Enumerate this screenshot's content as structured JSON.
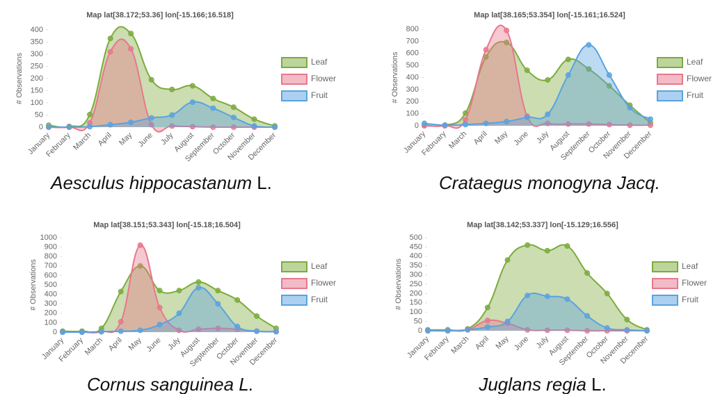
{
  "chart_data": [
    {
      "type": "area-line",
      "title": "Map lat[38.172;53.36] lon[-15.166;16.518]",
      "ylabel": "# Observations",
      "caption": [
        {
          "text": "Aesculus hippocastanum",
          "italic": true
        },
        {
          "text": "L.",
          "italic": false
        }
      ],
      "categories": [
        "January",
        "February",
        "March",
        "April",
        "May",
        "June",
        "July",
        "August",
        "September",
        "October",
        "November",
        "December"
      ],
      "ylim": [
        0,
        400
      ],
      "yticks": [
        0,
        50,
        100,
        150,
        200,
        250,
        300,
        350,
        400
      ],
      "series": [
        {
          "name": "Leaf",
          "color": "#7cab3c",
          "values": [
            8,
            3,
            52,
            365,
            385,
            195,
            155,
            170,
            118,
            82,
            33,
            5
          ]
        },
        {
          "name": "Flower",
          "color": "#e8778d",
          "values": [
            0,
            0,
            18,
            310,
            322,
            10,
            5,
            2,
            0,
            0,
            0,
            0
          ]
        },
        {
          "name": "Fruit",
          "color": "#5aa2e0",
          "values": [
            0,
            0,
            2,
            10,
            20,
            38,
            50,
            103,
            78,
            40,
            5,
            0
          ]
        }
      ]
    },
    {
      "type": "area-line",
      "title": "Map lat[38.165;53.354] lon[-15.161;16.524]",
      "ylabel": "# Observations",
      "caption": [
        {
          "text": "Crataegus monogyna Jacq.",
          "italic": true
        }
      ],
      "categories": [
        "January",
        "February",
        "March",
        "April",
        "May",
        "June",
        "July",
        "August",
        "September",
        "October",
        "November",
        "December"
      ],
      "ylim": [
        0,
        800
      ],
      "yticks": [
        0,
        100,
        200,
        300,
        400,
        500,
        600,
        700,
        800
      ],
      "series": [
        {
          "name": "Leaf",
          "color": "#7cab3c",
          "values": [
            5,
            5,
            105,
            570,
            690,
            460,
            380,
            550,
            470,
            330,
            170,
            25
          ]
        },
        {
          "name": "Flower",
          "color": "#e8778d",
          "values": [
            0,
            0,
            50,
            630,
            790,
            80,
            20,
            15,
            15,
            10,
            5,
            5
          ]
        },
        {
          "name": "Fruit",
          "color": "#5aa2e0",
          "values": [
            20,
            5,
            10,
            20,
            35,
            70,
            95,
            420,
            670,
            420,
            150,
            55
          ]
        }
      ]
    },
    {
      "type": "area-line",
      "title": "Map lat[38.151;53.343] lon[-15.18;16.504]",
      "ylabel": "# Observations",
      "caption": [
        {
          "text": "Cornus sanguinea L.",
          "italic": true
        }
      ],
      "categories": [
        "January",
        "February",
        "March",
        "April",
        "May",
        "June",
        "July",
        "August",
        "September",
        "October",
        "November",
        "December"
      ],
      "ylim": [
        0,
        1000
      ],
      "yticks": [
        0,
        100,
        200,
        300,
        400,
        500,
        600,
        700,
        800,
        900,
        1000
      ],
      "series": [
        {
          "name": "Leaf",
          "color": "#7cab3c",
          "values": [
            10,
            10,
            40,
            430,
            700,
            440,
            440,
            530,
            440,
            340,
            170,
            40
          ]
        },
        {
          "name": "Flower",
          "color": "#e8778d",
          "values": [
            0,
            0,
            5,
            110,
            920,
            260,
            20,
            30,
            40,
            30,
            10,
            5
          ]
        },
        {
          "name": "Fruit",
          "color": "#5aa2e0",
          "values": [
            0,
            0,
            5,
            10,
            20,
            80,
            200,
            470,
            300,
            60,
            10,
            5
          ]
        }
      ]
    },
    {
      "type": "area-line",
      "title": "Map lat[38.142;53.337] lon[-15.129;16.556]",
      "ylabel": "# Observations",
      "caption": [
        {
          "text": "Juglans regia",
          "italic": true
        },
        {
          "text": "L.",
          "italic": false
        }
      ],
      "categories": [
        "January",
        "February",
        "March",
        "April",
        "May",
        "June",
        "July",
        "August",
        "September",
        "October",
        "November",
        "December"
      ],
      "ylim": [
        0,
        500
      ],
      "yticks": [
        0,
        50,
        100,
        150,
        200,
        250,
        300,
        350,
        400,
        450,
        500
      ],
      "series": [
        {
          "name": "Leaf",
          "color": "#7cab3c",
          "values": [
            5,
            5,
            10,
            125,
            380,
            460,
            430,
            455,
            310,
            200,
            60,
            5
          ]
        },
        {
          "name": "Flower",
          "color": "#e8778d",
          "values": [
            0,
            0,
            5,
            55,
            40,
            5,
            3,
            3,
            0,
            0,
            0,
            0
          ]
        },
        {
          "name": "Fruit",
          "color": "#5aa2e0",
          "values": [
            0,
            0,
            5,
            20,
            50,
            190,
            185,
            170,
            80,
            15,
            5,
            0
          ]
        }
      ]
    }
  ]
}
